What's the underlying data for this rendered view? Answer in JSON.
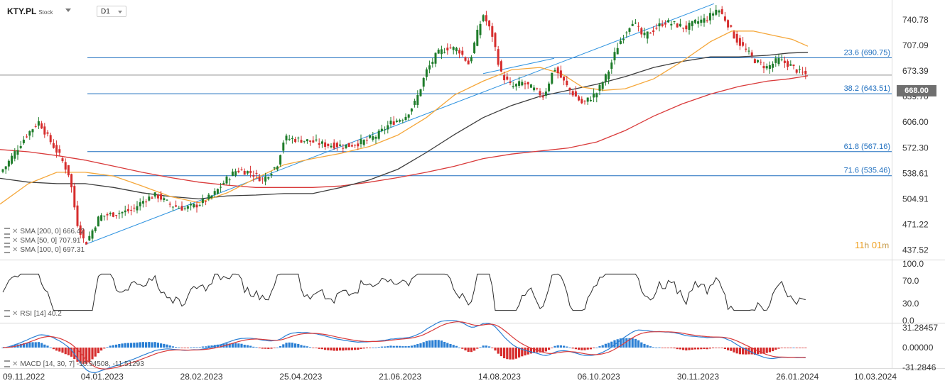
{
  "header": {
    "symbol": "KTY.PL",
    "type": "Stock",
    "timeframe": "D1",
    "current_price": "668.00",
    "countdown": {
      "h": "11",
      "h_unit": "h",
      "m": "01",
      "m_unit": "m"
    }
  },
  "indicators": {
    "sma200": "SMA [200, 0] 666.42",
    "sma50": "SMA [50, 0] 707.91",
    "sma100": "SMA [100, 0] 697.31",
    "rsi": "RSI [14]  40.2",
    "macd": "MACD [14, 30, 7]  -10.94508,  -11.51293"
  },
  "colors": {
    "up": "#1e7c2a",
    "down": "#d62d2d",
    "sma50": "#f5a73a",
    "sma100": "#3d3d3d",
    "sma200": "#d93a3a",
    "fib": "#1f6fbf",
    "trend": "#2f93e0",
    "macd": "#2a7fd4",
    "signal": "#d93a3a",
    "hist_up": "#2a7fd4",
    "hist_down": "#d62d2d"
  },
  "chart_data": {
    "type": "candlestick",
    "price_axis": [
      "740.78",
      "707.09",
      "673.39",
      "639.70",
      "606.00",
      "572.30",
      "538.61",
      "504.91",
      "471.22",
      "437.52"
    ],
    "price_range": [
      425,
      765
    ],
    "date_labels": [
      "09.11.2022",
      "04.01.2023",
      "28.02.2023",
      "25.04.2023",
      "21.06.2023",
      "14.08.2023",
      "06.10.2023",
      "30.11.2023",
      "26.01.2024",
      "10.03.2024"
    ],
    "fib_levels": [
      {
        "label": "23.6 (690.75)",
        "value": 690.75
      },
      {
        "label": "38.2 (643.51)",
        "value": 643.51
      },
      {
        "label": "61.8 (567.16)",
        "value": 567.16
      },
      {
        "label": "71.6 (535.46)",
        "value": 535.46
      }
    ],
    "current_price_line": 668.0,
    "price_path": [
      [
        0,
        540
      ],
      [
        8,
        548
      ],
      [
        22,
        568
      ],
      [
        38,
        590
      ],
      [
        55,
        607
      ],
      [
        68,
        585
      ],
      [
        85,
        560
      ],
      [
        98,
        535
      ],
      [
        108,
        475
      ],
      [
        120,
        445
      ],
      [
        140,
        482
      ],
      [
        165,
        486
      ],
      [
        185,
        490
      ],
      [
        205,
        505
      ],
      [
        220,
        510
      ],
      [
        240,
        497
      ],
      [
        260,
        492
      ],
      [
        280,
        498
      ],
      [
        300,
        510
      ],
      [
        318,
        530
      ],
      [
        333,
        543
      ],
      [
        352,
        540
      ],
      [
        370,
        530
      ],
      [
        390,
        550
      ],
      [
        400,
        585
      ],
      [
        430,
        582
      ],
      [
        460,
        576
      ],
      [
        490,
        575
      ],
      [
        510,
        580
      ],
      [
        530,
        588
      ],
      [
        550,
        605
      ],
      [
        570,
        613
      ],
      [
        585,
        633
      ],
      [
        600,
        673
      ],
      [
        615,
        696
      ],
      [
        630,
        704
      ],
      [
        645,
        702
      ],
      [
        660,
        682
      ],
      [
        670,
        718
      ],
      [
        680,
        748
      ],
      [
        693,
        720
      ],
      [
        705,
        670
      ],
      [
        720,
        652
      ],
      [
        735,
        658
      ],
      [
        750,
        650
      ],
      [
        765,
        640
      ],
      [
        780,
        678
      ],
      [
        800,
        650
      ],
      [
        820,
        630
      ],
      [
        840,
        645
      ],
      [
        855,
        670
      ],
      [
        870,
        708
      ],
      [
        890,
        740
      ],
      [
        905,
        718
      ],
      [
        920,
        728
      ],
      [
        935,
        738
      ],
      [
        950,
        735
      ],
      [
        965,
        730
      ],
      [
        980,
        738
      ],
      [
        995,
        742
      ],
      [
        1010,
        756
      ],
      [
        1023,
        738
      ],
      [
        1035,
        716
      ],
      [
        1050,
        700
      ],
      [
        1065,
        685
      ],
      [
        1080,
        678
      ],
      [
        1095,
        688
      ],
      [
        1110,
        682
      ],
      [
        1125,
        672
      ],
      [
        1137,
        668
      ]
    ],
    "trend_lines": [
      {
        "from": [
          120,
          445
        ],
        "to": [
          1005,
          762
        ]
      },
      {
        "from": [
          680,
          670
        ],
        "to": [
          780,
          690
        ]
      }
    ],
    "sma50": [
      [
        0,
        498
      ],
      [
        40,
        525
      ],
      [
        80,
        540
      ],
      [
        120,
        540
      ],
      [
        160,
        535
      ],
      [
        200,
        522
      ],
      [
        240,
        508
      ],
      [
        280,
        500
      ],
      [
        320,
        513
      ],
      [
        360,
        532
      ],
      [
        400,
        550
      ],
      [
        440,
        558
      ],
      [
        480,
        565
      ],
      [
        520,
        574
      ],
      [
        560,
        589
      ],
      [
        600,
        612
      ],
      [
        640,
        642
      ],
      [
        680,
        660
      ],
      [
        720,
        675
      ],
      [
        760,
        678
      ],
      [
        790,
        670
      ],
      [
        820,
        652
      ],
      [
        850,
        648
      ],
      [
        880,
        650
      ],
      [
        920,
        663
      ],
      [
        960,
        686
      ],
      [
        1000,
        712
      ],
      [
        1030,
        726
      ],
      [
        1060,
        726
      ],
      [
        1090,
        720
      ],
      [
        1115,
        715
      ],
      [
        1137,
        706
      ]
    ],
    "sma100": [
      [
        0,
        532
      ],
      [
        40,
        527
      ],
      [
        80,
        525
      ],
      [
        120,
        525
      ],
      [
        160,
        520
      ],
      [
        200,
        513
      ],
      [
        240,
        508
      ],
      [
        280,
        505
      ],
      [
        320,
        509
      ],
      [
        360,
        510
      ],
      [
        400,
        512
      ],
      [
        440,
        512
      ],
      [
        480,
        520
      ],
      [
        520,
        530
      ],
      [
        560,
        544
      ],
      [
        600,
        566
      ],
      [
        640,
        590
      ],
      [
        680,
        612
      ],
      [
        720,
        628
      ],
      [
        760,
        640
      ],
      [
        800,
        648
      ],
      [
        840,
        656
      ],
      [
        880,
        666
      ],
      [
        920,
        678
      ],
      [
        960,
        686
      ],
      [
        1000,
        692
      ],
      [
        1040,
        692
      ],
      [
        1080,
        694
      ],
      [
        1110,
        697
      ],
      [
        1137,
        698
      ]
    ],
    "sma200": [
      [
        0,
        570
      ],
      [
        40,
        567
      ],
      [
        80,
        562
      ],
      [
        120,
        556
      ],
      [
        160,
        548
      ],
      [
        200,
        540
      ],
      [
        240,
        533
      ],
      [
        280,
        527
      ],
      [
        320,
        523
      ],
      [
        360,
        520
      ],
      [
        400,
        520
      ],
      [
        440,
        520
      ],
      [
        480,
        522
      ],
      [
        520,
        527
      ],
      [
        560,
        533
      ],
      [
        600,
        540
      ],
      [
        640,
        548
      ],
      [
        680,
        558
      ],
      [
        720,
        564
      ],
      [
        760,
        568
      ],
      [
        800,
        572
      ],
      [
        840,
        580
      ],
      [
        880,
        595
      ],
      [
        920,
        614
      ],
      [
        960,
        630
      ],
      [
        1000,
        643
      ],
      [
        1040,
        653
      ],
      [
        1080,
        660
      ],
      [
        1110,
        663
      ],
      [
        1137,
        667
      ]
    ],
    "rsi": {
      "axis": [
        "100.0",
        "70.0",
        "30.0",
        "0.0"
      ],
      "range": [
        0,
        100
      ]
    },
    "macd": {
      "axis": [
        "31.28457",
        "0.00000",
        "-31.2846"
      ],
      "range": [
        -31.2846,
        31.28457
      ]
    }
  }
}
